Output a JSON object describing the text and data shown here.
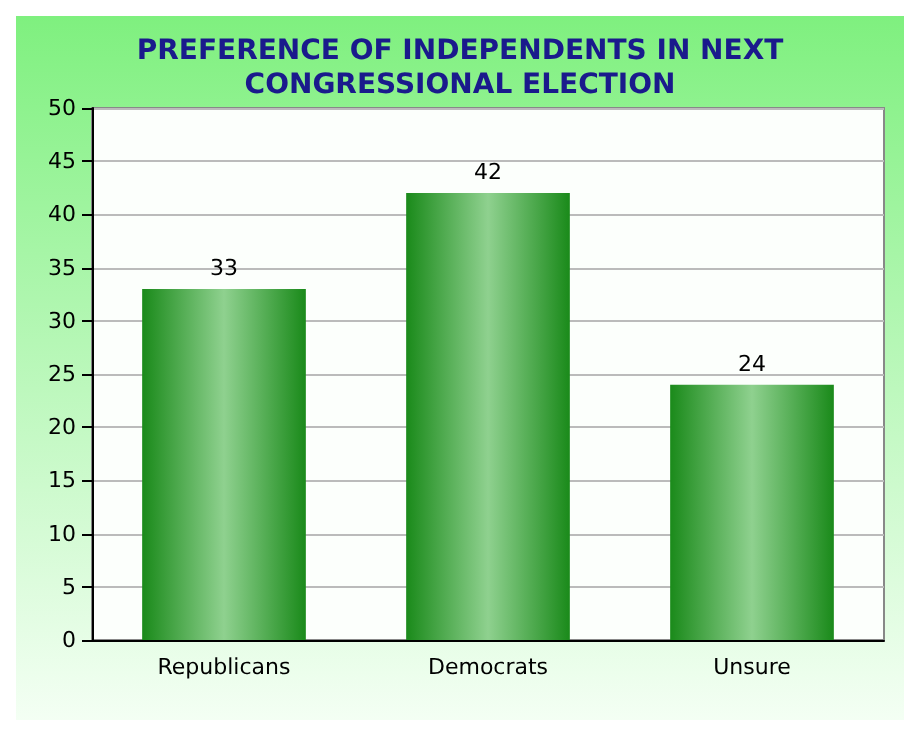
{
  "chart_data": {
    "type": "bar",
    "title": "PREFERENCE OF INDEPENDENTS IN NEXT\nCONGRESSIONAL ELECTION",
    "categories": [
      "Republicans",
      "Democrats",
      "Unsure"
    ],
    "values": [
      33,
      42,
      24
    ],
    "color": "#1a8a1a",
    "ylim": [
      0,
      50
    ],
    "yticks": [
      0,
      5,
      10,
      15,
      20,
      25,
      30,
      35,
      40,
      45,
      50
    ],
    "grid": "y",
    "data_labels": true
  }
}
